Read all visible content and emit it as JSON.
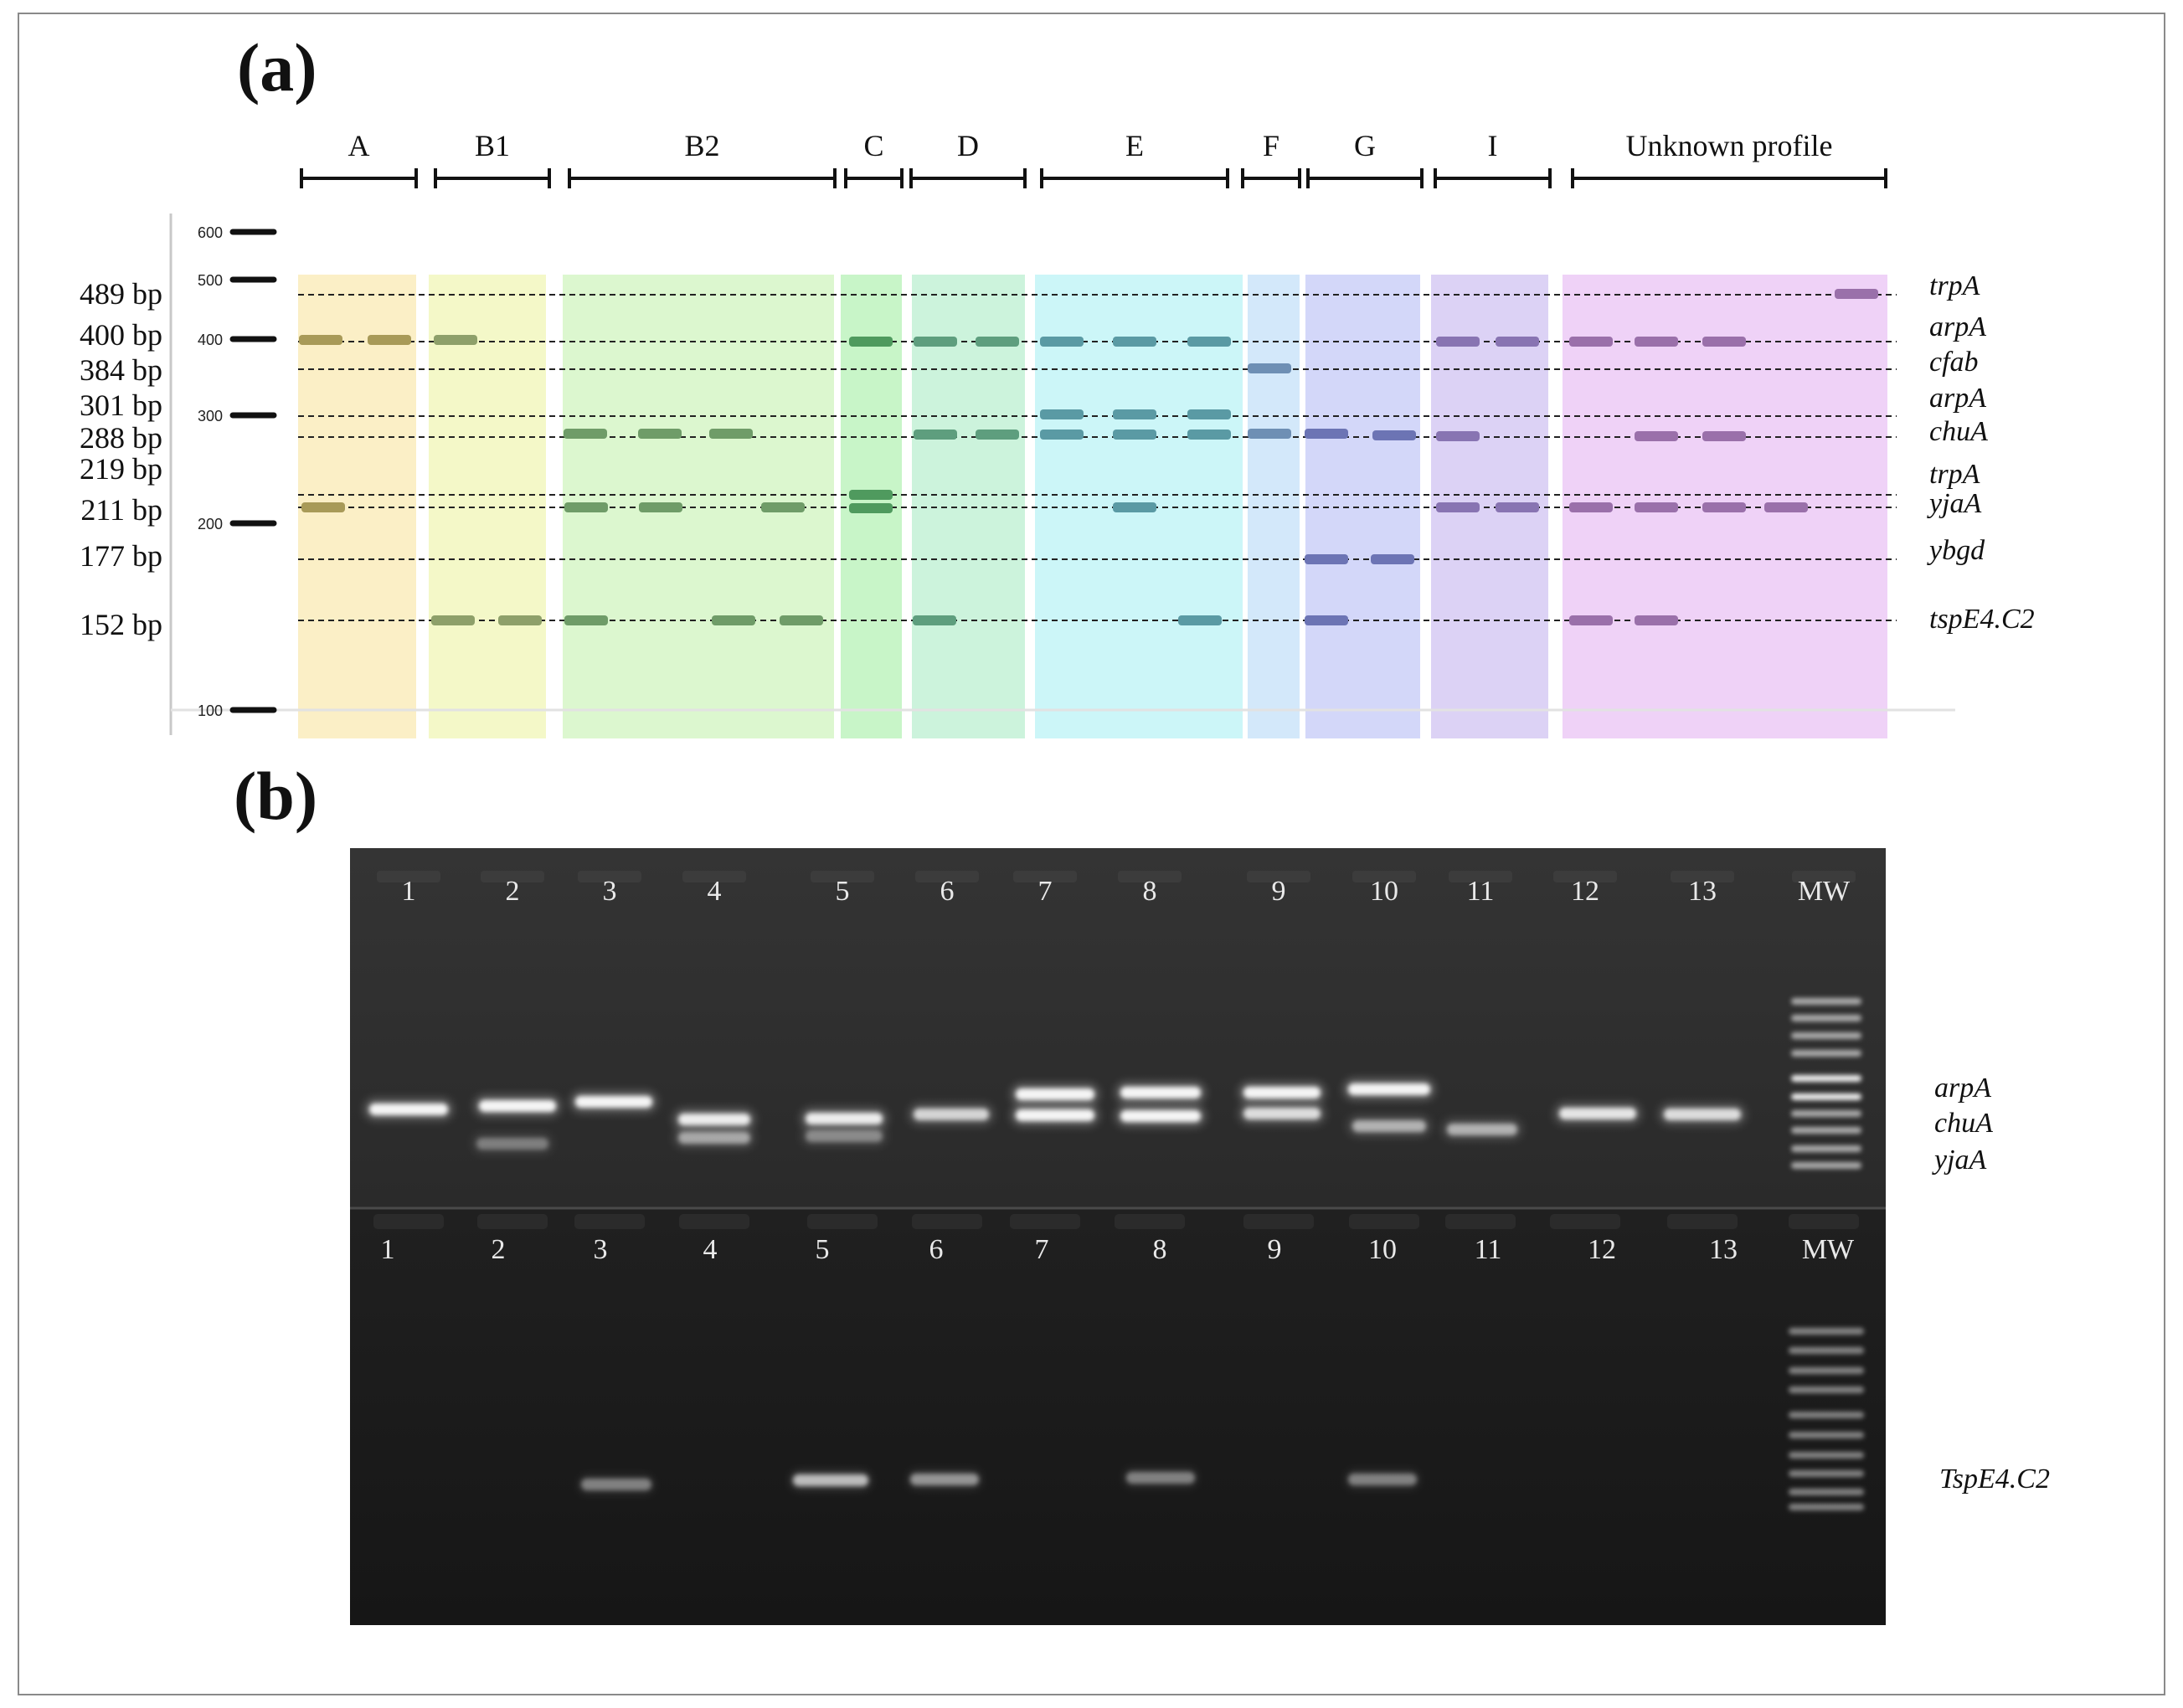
{
  "panel_a": {
    "label": "(a)",
    "groups": [
      {
        "name": "A",
        "color": "#fbefc6"
      },
      {
        "name": "B1",
        "color": "#f4f8c8"
      },
      {
        "name": "B2",
        "color": "#dcf7cf"
      },
      {
        "name": "C",
        "color": "#c8f5c8"
      },
      {
        "name": "D",
        "color": "#ccf3dc"
      },
      {
        "name": "E",
        "color": "#ccf6f8"
      },
      {
        "name": "F",
        "color": "#d3e8fa"
      },
      {
        "name": "G",
        "color": "#d3d7f9"
      },
      {
        "name": "I",
        "color": "#dcd2f5"
      },
      {
        "name": "Unknown profile",
        "color": "#efd2f7"
      }
    ],
    "size_labels": [
      "489 bp",
      "400 bp",
      "384 bp",
      "301 bp",
      "288 bp",
      "219 bp",
      "211 bp",
      "177 bp",
      "152 bp"
    ],
    "ladder_marks": [
      "600",
      "500",
      "400",
      "300",
      "200",
      "100"
    ],
    "gene_labels": [
      "trpA",
      "arpA",
      "cfab",
      "arpA",
      "chuA",
      "trpA",
      "yjaA",
      "ybgd",
      "tspE4.C2"
    ]
  },
  "panel_b": {
    "label": "(b)",
    "top_gel": {
      "lane_labels": [
        "1",
        "2",
        "3",
        "4",
        "5",
        "6",
        "7",
        "8",
        "9",
        "10",
        "11",
        "12",
        "13",
        "MW"
      ],
      "gene_labels": [
        "arpA",
        "chuA",
        "yjaA"
      ]
    },
    "bottom_gel": {
      "lane_labels": [
        "1",
        "2",
        "3",
        "4",
        "5",
        "6",
        "7",
        "8",
        "9",
        "10",
        "11",
        "12",
        "13",
        "MW"
      ],
      "gene_labels": [
        "TspE4.C2"
      ]
    }
  }
}
